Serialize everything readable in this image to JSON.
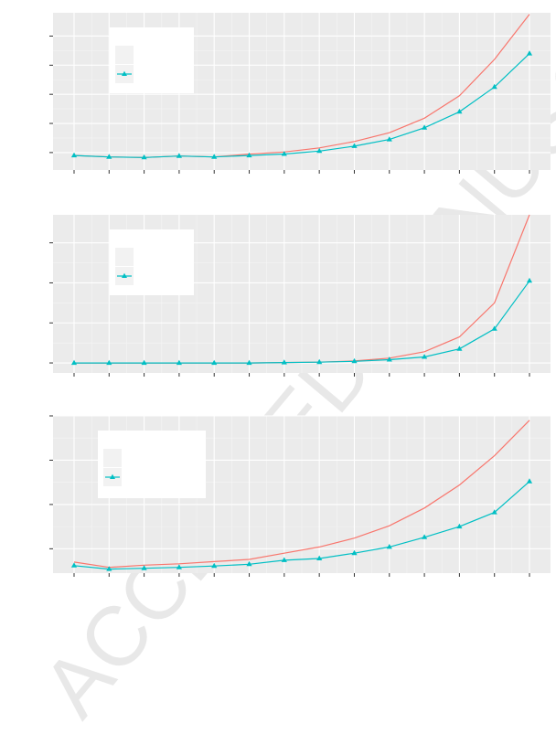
{
  "watermark": {
    "text": "ACCEPTED MANUSCRIPT",
    "color": "#e8e8e8"
  },
  "colors": {
    "panel_bg": "#ebebeb",
    "grid_major": "#ffffff",
    "series_red": "#f8766d",
    "series_teal": "#00bfc4",
    "legend_key_bg": "#f2f2f2",
    "tick": "#333333"
  },
  "chart_data": [
    {
      "type": "line",
      "x": [
        1,
        2,
        3,
        4,
        5,
        6,
        7,
        8,
        9,
        10,
        11,
        12,
        13,
        14
      ],
      "xlim": [
        0.4,
        14.6
      ],
      "ylim": [
        -0.3,
        5.1
      ],
      "ytick_values": [
        0.3,
        1.3,
        2.3,
        3.3,
        4.3
      ],
      "legend_position": "top-left",
      "series": [
        {
          "color": "#f8766d",
          "marker": "none",
          "values": [
            0.2,
            0.15,
            0.13,
            0.18,
            0.15,
            0.25,
            0.32,
            0.46,
            0.68,
            0.98,
            1.48,
            2.25,
            3.5,
            5.05
          ]
        },
        {
          "color": "#00bfc4",
          "marker": "triangle",
          "values": [
            0.2,
            0.15,
            0.13,
            0.18,
            0.15,
            0.2,
            0.25,
            0.35,
            0.52,
            0.75,
            1.15,
            1.7,
            2.55,
            3.7
          ]
        }
      ]
    },
    {
      "type": "line",
      "x": [
        1,
        2,
        3,
        4,
        5,
        6,
        7,
        8,
        9,
        10,
        11,
        12,
        13,
        14
      ],
      "xlim": [
        0.4,
        14.6
      ],
      "ylim": [
        -0.25,
        3.7
      ],
      "ytick_values": [
        0,
        1,
        2,
        3
      ],
      "legend_position": "top-left",
      "series": [
        {
          "color": "#f8766d",
          "marker": "none",
          "values": [
            0,
            0,
            0,
            0,
            0,
            0,
            0.01,
            0.02,
            0.05,
            0.12,
            0.28,
            0.65,
            1.5,
            3.7
          ]
        },
        {
          "color": "#00bfc4",
          "marker": "triangle",
          "values": [
            0,
            0,
            0,
            0,
            0,
            0,
            0.01,
            0.02,
            0.04,
            0.08,
            0.15,
            0.35,
            0.85,
            2.05
          ]
        }
      ]
    },
    {
      "type": "line",
      "x": [
        1,
        2,
        3,
        4,
        5,
        6,
        7,
        8,
        9,
        10,
        11,
        12,
        13,
        14
      ],
      "xlim": [
        0.4,
        14.6
      ],
      "ylim": [
        -0.55,
        3.0
      ],
      "ytick_values": [
        0,
        1,
        2,
        3
      ],
      "legend_position": "top-left",
      "series": [
        {
          "color": "#f8766d",
          "marker": "none",
          "values": [
            -0.3,
            -0.42,
            -0.37,
            -0.34,
            -0.29,
            -0.24,
            -0.1,
            0.04,
            0.24,
            0.52,
            0.92,
            1.44,
            2.1,
            2.9
          ]
        },
        {
          "color": "#00bfc4",
          "marker": "triangle",
          "values": [
            -0.38,
            -0.46,
            -0.44,
            -0.42,
            -0.39,
            -0.35,
            -0.26,
            -0.22,
            -0.1,
            0.04,
            0.26,
            0.5,
            0.82,
            1.52
          ]
        }
      ]
    }
  ]
}
